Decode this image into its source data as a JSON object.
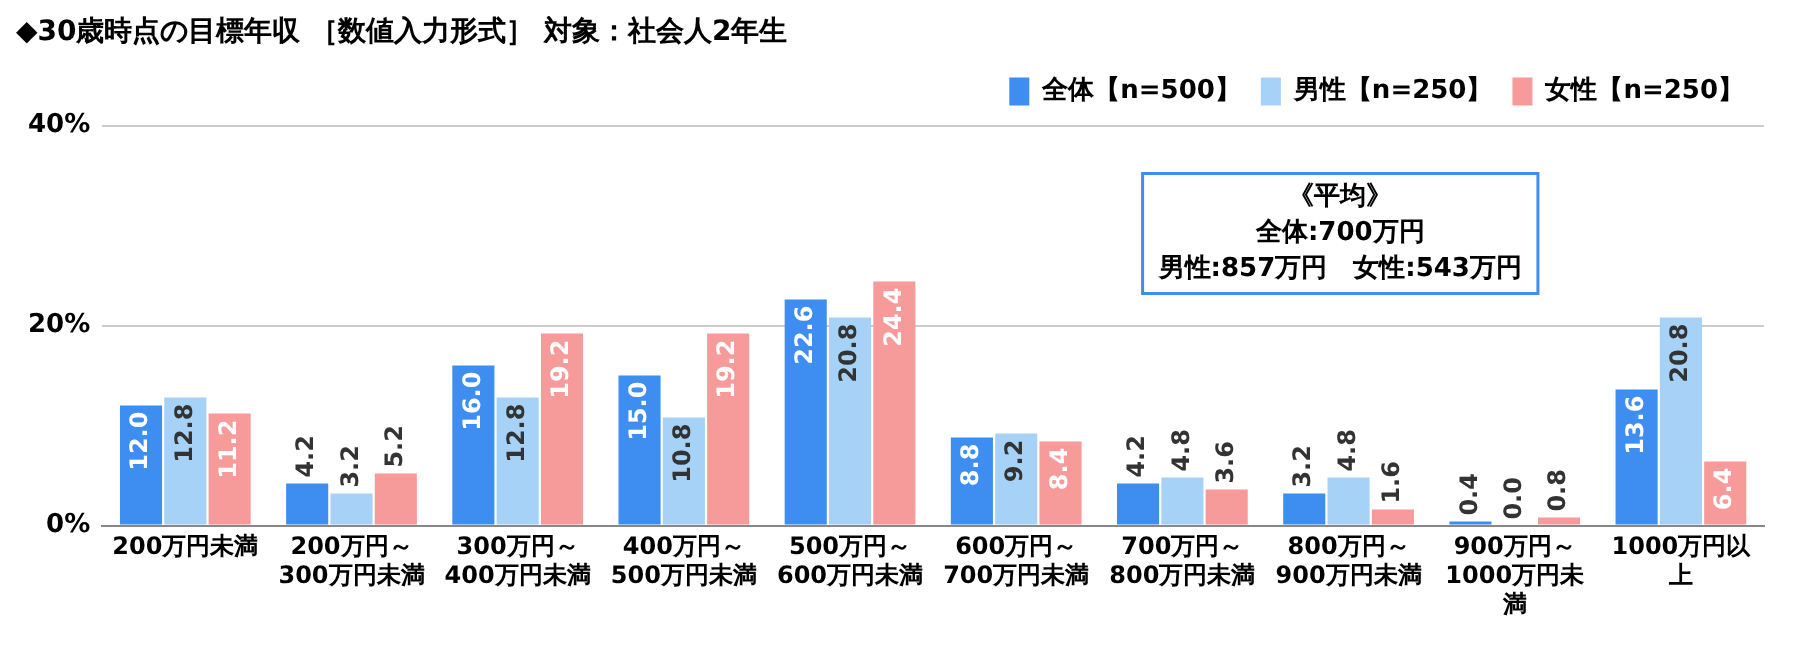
{
  "chart_data": {
    "type": "bar",
    "title": "◆30歳時点の目標年収 ［数値入力形式］ 対象：社会人2年生",
    "categories": [
      "200万円未満",
      "200万円～300万円未満",
      "300万円～400万円未満",
      "400万円～500万円未満",
      "500万円～600万円未満",
      "600万円～700万円未満",
      "700万円～800万円未満",
      "800万円～900万円未満",
      "900万円～1000万円未満",
      "1000万円以上"
    ],
    "series": [
      {
        "name": "全体【n=500】",
        "color": "#3d8ef0",
        "values": [
          12.0,
          4.2,
          16.0,
          15.0,
          22.6,
          8.8,
          4.2,
          3.2,
          0.4,
          13.6
        ],
        "value_labels": [
          "12.0",
          "4.2",
          "16.0",
          "15.0",
          "22.6",
          "8.8",
          "4.2",
          "3.2",
          "0.4",
          "13.6"
        ]
      },
      {
        "name": "男性【n=250】",
        "color": "#a6d2f7",
        "values": [
          12.8,
          3.2,
          12.8,
          10.8,
          20.8,
          9.2,
          4.8,
          4.8,
          0.0,
          20.8
        ],
        "value_labels": [
          "12.8",
          "3.2",
          "12.8",
          "10.8",
          "20.8",
          "9.2",
          "4.8",
          "4.8",
          "0.0",
          "20.8"
        ]
      },
      {
        "name": "女性【n=250】",
        "color": "#f79a9a",
        "values": [
          11.2,
          5.2,
          19.2,
          19.2,
          24.4,
          8.4,
          3.6,
          1.6,
          0.8,
          6.4
        ],
        "value_labels": [
          "11.2",
          "5.2",
          "19.2",
          "19.2",
          "24.4",
          "8.4",
          "3.6",
          "1.6",
          "0.8",
          "6.4"
        ]
      }
    ],
    "ylim": [
      0,
      40
    ],
    "yticks": [
      {
        "value": 0,
        "label": "0%"
      },
      {
        "value": 20,
        "label": "20%"
      },
      {
        "value": 40,
        "label": "40%"
      }
    ],
    "grid": "y",
    "legend": "top right",
    "annotations": [
      "《平均》",
      "全体:700万円",
      "男性:857万円　女性:543万円"
    ]
  }
}
